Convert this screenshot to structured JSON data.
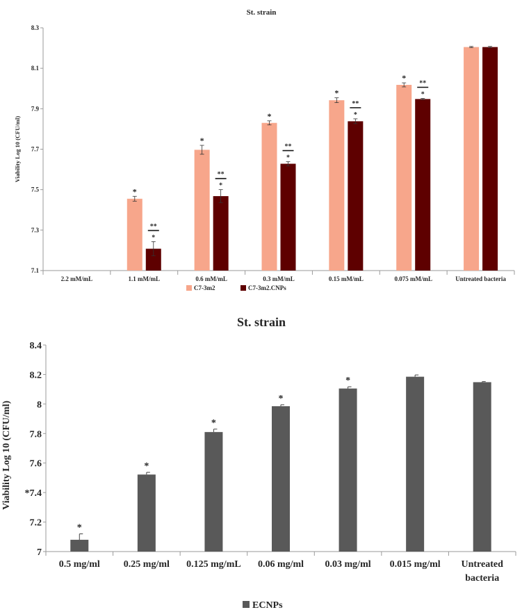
{
  "chart_data": [
    {
      "type": "bar",
      "title": "St. strain",
      "xlabel": "",
      "ylabel": "Viability Log 10 (CFU/ml)",
      "ylim": [
        7.1,
        8.3
      ],
      "yticks": [
        "7.1",
        "7.3",
        "7.5",
        "7.7",
        "7.9",
        "8.1",
        "8.3"
      ],
      "categories": [
        "2.2 mM/mL",
        "1.1 mM/mL",
        "0.6 mM/mL",
        "0.3 mM/mL",
        "0.15 mM/mL",
        "0.075 mM/mL",
        "Untreated bacteria"
      ],
      "series": [
        {
          "name": "C7-3m2",
          "color": "#f7a68b",
          "values": [
            null,
            7.455,
            7.697,
            7.83,
            7.942,
            8.018,
            8.205
          ],
          "errors": [
            null,
            0.012,
            0.022,
            0.01,
            0.012,
            0.01,
            0.003
          ],
          "annotations": [
            null,
            "*",
            "*",
            "*",
            "*",
            "*",
            null
          ]
        },
        {
          "name": "C7-3m2.CNPs",
          "color": "#5e0000",
          "values": [
            null,
            7.208,
            7.468,
            7.628,
            7.838,
            7.948,
            8.205
          ],
          "errors": [
            null,
            0.035,
            0.032,
            0.01,
            0.012,
            0.003,
            0.003
          ],
          "annotations": [
            null,
            "*",
            "*",
            "*",
            "*",
            "*",
            null
          ],
          "bracket_annotations": [
            null,
            "**",
            "**",
            "**",
            "**",
            "**",
            null
          ]
        }
      ],
      "legend_position": "bottom"
    },
    {
      "type": "bar",
      "title": "St. strain",
      "xlabel": "",
      "ylabel": "Viability Log 10 (CFU/ml)",
      "ylim": [
        7,
        8.4
      ],
      "yticks": [
        "7",
        "7.2",
        "*7.4",
        "7.6",
        "7.8",
        "8",
        "8.2",
        "8.4"
      ],
      "categories": [
        [
          "0.5 mg/ml"
        ],
        [
          "0.25 mg/ml"
        ],
        [
          "0.125 mg/mL"
        ],
        [
          "0.06 mg/ml"
        ],
        [
          "0.03 mg/ml"
        ],
        [
          "0.015 mg/ml"
        ],
        [
          "Untreated",
          "bacteria"
        ]
      ],
      "series": [
        {
          "name": "ECNPs",
          "color": "#595959",
          "values": [
            7.08,
            7.522,
            7.81,
            7.985,
            8.105,
            8.185,
            8.148
          ],
          "errors": [
            0.04,
            0.015,
            0.02,
            0.01,
            0.012,
            0.012,
            0.004
          ],
          "annotations": [
            "*",
            "*",
            "*",
            "*",
            "*",
            null,
            null
          ]
        }
      ],
      "legend_position": "bottom"
    }
  ]
}
